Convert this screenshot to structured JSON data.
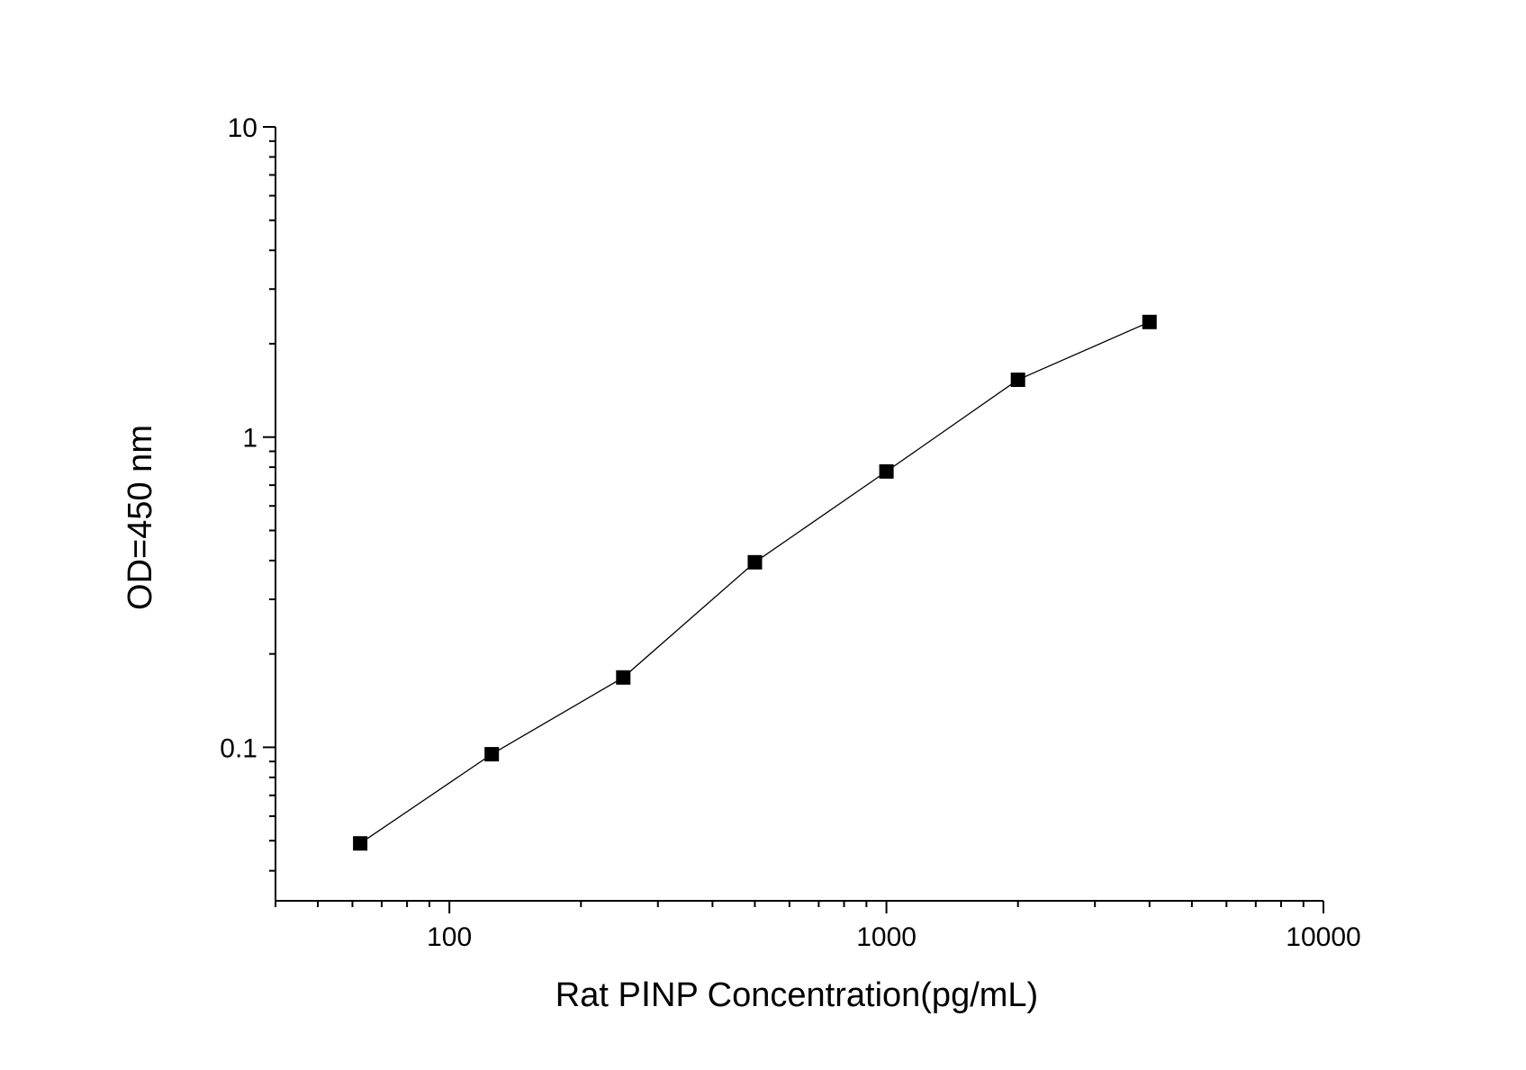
{
  "chart_data": {
    "type": "line",
    "title": "",
    "xlabel": "Rat  PⅠNP  Concentration(pg/mL)",
    "ylabel": "OD=450 nm",
    "x_scale": "log",
    "y_scale": "log",
    "xlim": [
      40,
      10000
    ],
    "ylim": [
      0.032,
      10
    ],
    "x_ticks": [
      {
        "value": 100,
        "label": "100"
      },
      {
        "value": 1000,
        "label": "1000"
      },
      {
        "value": 10000,
        "label": "10000"
      }
    ],
    "y_ticks": [
      {
        "value": 0.1,
        "label": "0.1"
      },
      {
        "value": 1,
        "label": "1"
      },
      {
        "value": 10,
        "label": "10"
      }
    ],
    "grid": false,
    "legend": "none",
    "colors": {
      "line": "#000000",
      "marker": "#000000",
      "axis": "#000000"
    },
    "marker": "square",
    "series": [
      {
        "x": [
          62.5,
          125,
          250,
          500,
          1000,
          2000,
          4000
        ],
        "y": [
          0.049,
          0.095,
          0.168,
          0.395,
          0.775,
          1.53,
          2.35
        ]
      }
    ]
  }
}
